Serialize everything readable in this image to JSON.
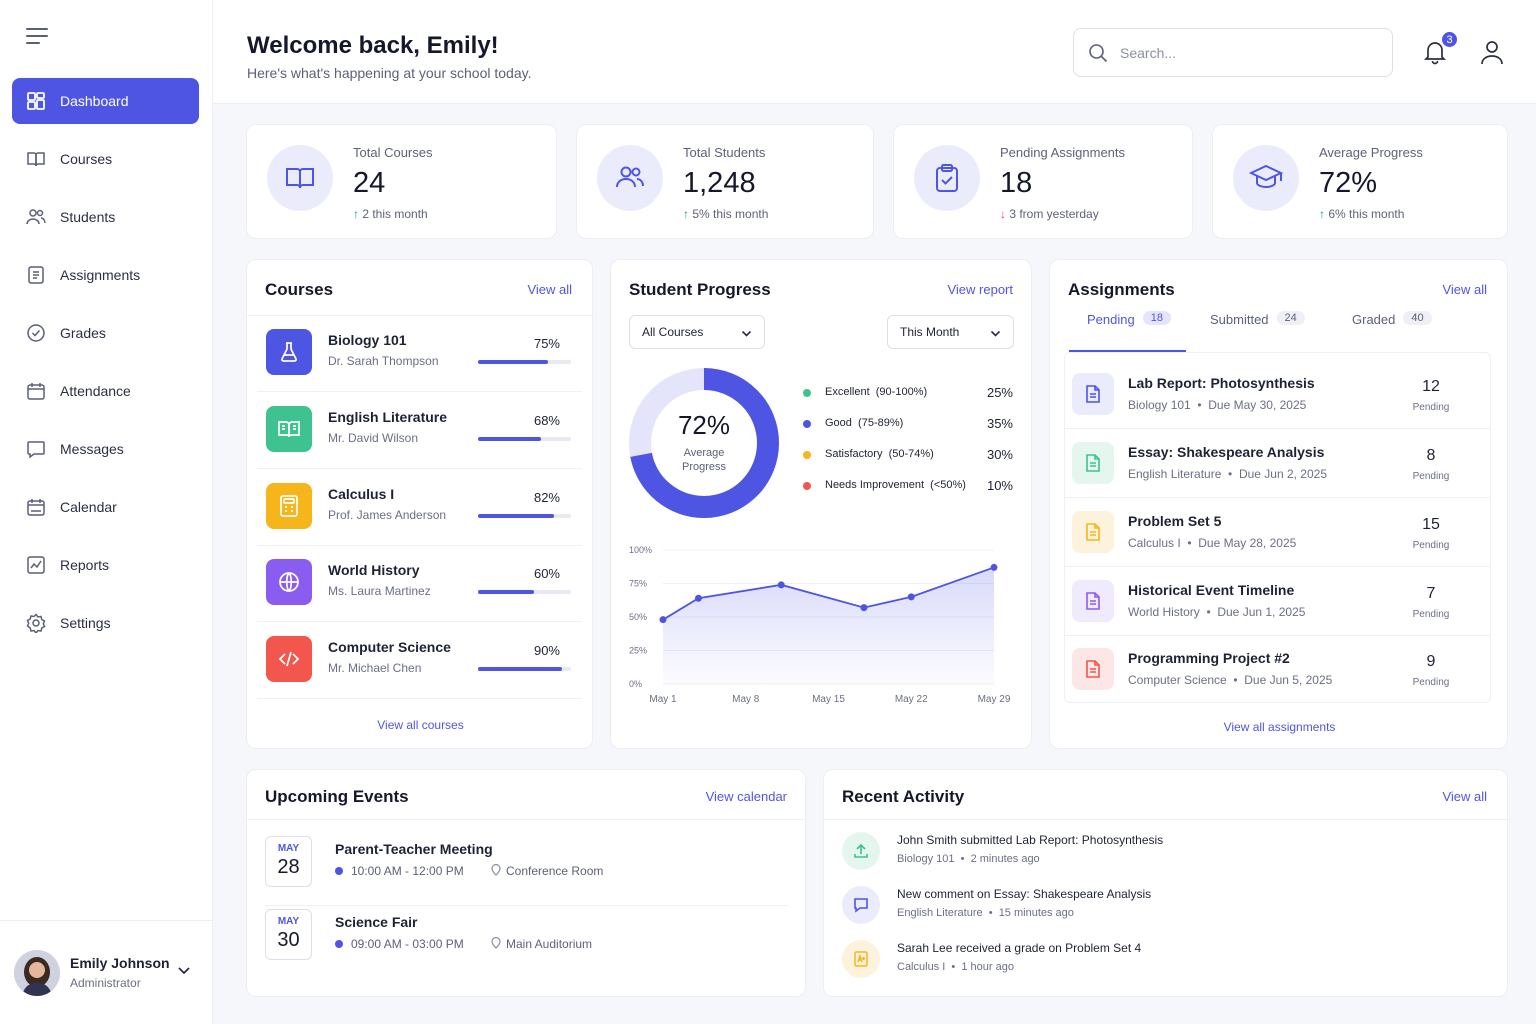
{
  "sidebar": {
    "items": [
      {
        "label": "Dashboard",
        "icon": "dashboard-icon"
      },
      {
        "label": "Courses",
        "icon": "book-icon"
      },
      {
        "label": "Students",
        "icon": "users-icon"
      },
      {
        "label": "Assignments",
        "icon": "file-icon"
      },
      {
        "label": "Grades",
        "icon": "check-circle-icon"
      },
      {
        "label": "Attendance",
        "icon": "calendar-check-icon"
      },
      {
        "label": "Messages",
        "icon": "message-icon"
      },
      {
        "label": "Calendar",
        "icon": "calendar-icon"
      },
      {
        "label": "Reports",
        "icon": "chart-icon"
      },
      {
        "label": "Settings",
        "icon": "gear-icon"
      }
    ],
    "user": {
      "name": "Emily Johnson",
      "role": "Administrator"
    }
  },
  "header": {
    "welcome": "Welcome back, Emily!",
    "subtitle": "Here's what's happening at your school today.",
    "search_placeholder": "Search...",
    "notification_count": "3"
  },
  "stats": [
    {
      "label": "Total Courses",
      "value": "24",
      "delta_arrow": "↑",
      "delta": "2 this month",
      "trend": "up"
    },
    {
      "label": "Total Students",
      "value": "1,248",
      "delta_arrow": "↑",
      "delta": "5% this month",
      "trend": "up"
    },
    {
      "label": "Pending Assignments",
      "value": "18",
      "delta_arrow": "↓",
      "delta": "3 from yesterday",
      "trend": "down"
    },
    {
      "label": "Average Progress",
      "value": "72%",
      "delta_arrow": "↑",
      "delta": "6% this month",
      "trend": "up"
    }
  ],
  "courses": {
    "title": "Courses",
    "view_all": "View all",
    "footer_link": "View all courses",
    "items": [
      {
        "name": "Biology 101",
        "teacher": "Dr. Sarah Thompson",
        "pct": "75%",
        "progress": 0.75,
        "color": "#4f55e3",
        "icon": "flask-icon"
      },
      {
        "name": "English Literature",
        "teacher": "Mr. David Wilson",
        "pct": "68%",
        "progress": 0.68,
        "color": "#3ec28f",
        "icon": "open-book-icon"
      },
      {
        "name": "Calculus I",
        "teacher": "Prof. James Anderson",
        "pct": "82%",
        "progress": 0.82,
        "color": "#f7b51c",
        "icon": "calculator-icon"
      },
      {
        "name": "World History",
        "teacher": "Ms. Laura Martinez",
        "pct": "60%",
        "progress": 0.6,
        "color": "#8b5cf0",
        "icon": "globe-icon"
      },
      {
        "name": "Computer Science",
        "teacher": "Mr. Michael Chen",
        "pct": "90%",
        "progress": 0.9,
        "color": "#f2564d",
        "icon": "code-icon"
      }
    ]
  },
  "progress": {
    "title": "Student Progress",
    "view_report": "View report",
    "course_filter": "All Courses",
    "period_filter": "This Month",
    "donut_value": "72%",
    "donut_label_1": "Average",
    "donut_label_2": "Progress",
    "legend": [
      {
        "name": "Excellent",
        "range": "(90-100%)",
        "value": "25%",
        "color": "#3ec28f"
      },
      {
        "name": "Good",
        "range": "(75-89%)",
        "value": "35%",
        "color": "#4f55e3"
      },
      {
        "name": "Satisfactory",
        "range": "(50-74%)",
        "value": "30%",
        "color": "#f7b51c"
      },
      {
        "name": "Needs Improvement",
        "range": "(<50%)",
        "value": "10%",
        "color": "#f2564d"
      }
    ]
  },
  "chart_data": {
    "type": "line",
    "x": [
      "May 1",
      "May 4",
      "May 11",
      "May 18",
      "May 22",
      "May 29"
    ],
    "y": [
      48,
      64,
      74,
      57,
      65,
      87
    ],
    "xticks": [
      "May 1",
      "May 8",
      "May 15",
      "May 22",
      "May 29"
    ],
    "yticks": [
      "100%",
      "75%",
      "50%",
      "25%",
      "0%"
    ],
    "ylim": [
      0,
      100
    ],
    "color": "#4f55e3"
  },
  "assignments": {
    "title": "Assignments",
    "view_all": "View all",
    "footer_link": "View all assignments",
    "tabs": [
      {
        "label": "Pending",
        "count": "18"
      },
      {
        "label": "Submitted",
        "count": "24"
      },
      {
        "label": "Graded",
        "count": "40"
      }
    ],
    "items": [
      {
        "name": "Lab Report: Photosynthesis",
        "course": "Biology 101",
        "due": "Due May 30, 2025",
        "count": "12",
        "status": "Pending",
        "color": "#4f55e3",
        "bg": "#ebecfb"
      },
      {
        "name": "Essay: Shakespeare Analysis",
        "course": "English Literature",
        "due": "Due Jun 2, 2025",
        "count": "8",
        "status": "Pending",
        "color": "#3ec28f",
        "bg": "#e4f6ee"
      },
      {
        "name": "Problem Set 5",
        "course": "Calculus I",
        "due": "Due May 28, 2025",
        "count": "15",
        "status": "Pending",
        "color": "#f7b51c",
        "bg": "#fdf3dc"
      },
      {
        "name": "Historical Event Timeline",
        "course": "World History",
        "due": "Due Jun 1, 2025",
        "count": "7",
        "status": "Pending",
        "color": "#8b5cf0",
        "bg": "#f0eafd"
      },
      {
        "name": "Programming Project #2",
        "course": "Computer Science",
        "due": "Due Jun 5, 2025",
        "count": "9",
        "status": "Pending",
        "color": "#f2564d",
        "bg": "#fde7e6"
      }
    ]
  },
  "events": {
    "title": "Upcoming Events",
    "view_calendar": "View calendar",
    "items": [
      {
        "month": "MAY",
        "day": "28",
        "name": "Parent-Teacher Meeting",
        "time": "10:00 AM - 12:00 PM",
        "location": "Conference Room"
      },
      {
        "month": "MAY",
        "day": "30",
        "name": "Science Fair",
        "time": "09:00 AM - 03:00 PM",
        "location": "Main Auditorium"
      }
    ]
  },
  "activity": {
    "title": "Recent Activity",
    "view_all": "View all",
    "items": [
      {
        "actor": "John Smith",
        "verb": " submitted ",
        "object": "Lab Report: Photosynthesis",
        "course": "Biology 101",
        "time": "2 minutes ago",
        "color": "#3ec28f",
        "bg": "#e4f6ee"
      },
      {
        "actor": "New comment on ",
        "verb": "",
        "object": "Essay: Shakespeare Analysis",
        "course": "English Literature",
        "time": "15 minutes ago",
        "color": "#4f55e3",
        "bg": "#ebecfb"
      },
      {
        "actor": "Sarah Lee",
        "verb": " received a grade on ",
        "object": "Problem Set 4",
        "course": "Calculus I",
        "time": "1 hour ago",
        "color": "#f7b51c",
        "bg": "#fdf3dc"
      }
    ]
  }
}
